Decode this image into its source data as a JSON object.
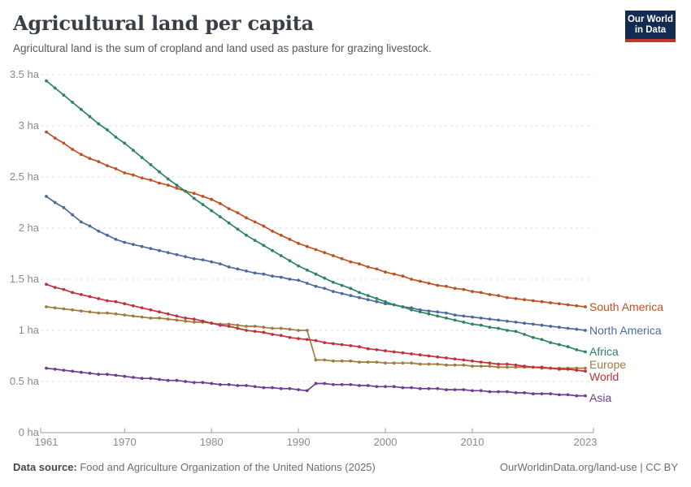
{
  "header": {
    "title": "Agricultural land per capita",
    "subtitle": "Agricultural land is the sum of cropland and land used as pasture for grazing livestock.",
    "logo": {
      "line1": "Our World",
      "line2": "in Data",
      "bg_color": "#122B51",
      "accent_color": "#C5342F"
    }
  },
  "footer": {
    "source_label": "Data source:",
    "source_text": " Food and Agriculture Organization of the United Nations (2025)",
    "credit": "OurWorldinData.org/land-use | CC BY"
  },
  "chart_data": {
    "type": "line",
    "unit": "ha",
    "x_range": [
      1961,
      2023
    ],
    "ylim": [
      0,
      3.5
    ],
    "grid": "horizontal-dashed",
    "legend_position": "right-of-line-ends",
    "yticks": [
      0,
      0.5,
      1,
      1.5,
      2,
      2.5,
      3,
      3.5
    ],
    "ytick_labels": [
      "0 ha",
      "0.5 ha",
      "1 ha",
      "1.5 ha",
      "2 ha",
      "2.5 ha",
      "3 ha",
      "3.5 ha"
    ],
    "xticks": [
      1961,
      1970,
      1980,
      1990,
      2000,
      2010,
      2023
    ],
    "years": [
      1961,
      1962,
      1963,
      1964,
      1965,
      1966,
      1967,
      1968,
      1969,
      1970,
      1971,
      1972,
      1973,
      1974,
      1975,
      1976,
      1977,
      1978,
      1979,
      1980,
      1981,
      1982,
      1983,
      1984,
      1985,
      1986,
      1987,
      1988,
      1989,
      1990,
      1991,
      1992,
      1993,
      1994,
      1995,
      1996,
      1997,
      1998,
      1999,
      2000,
      2001,
      2002,
      2003,
      2004,
      2005,
      2006,
      2007,
      2008,
      2009,
      2010,
      2011,
      2012,
      2013,
      2014,
      2015,
      2016,
      2017,
      2018,
      2019,
      2020,
      2021,
      2022,
      2023
    ],
    "series": [
      {
        "name": "South America",
        "color": "#BE5123",
        "values": [
          2.94,
          2.88,
          2.83,
          2.77,
          2.72,
          2.68,
          2.65,
          2.61,
          2.58,
          2.54,
          2.52,
          2.49,
          2.47,
          2.44,
          2.42,
          2.39,
          2.36,
          2.34,
          2.31,
          2.28,
          2.24,
          2.19,
          2.15,
          2.1,
          2.06,
          2.02,
          1.97,
          1.93,
          1.89,
          1.85,
          1.82,
          1.79,
          1.76,
          1.73,
          1.7,
          1.67,
          1.65,
          1.62,
          1.6,
          1.57,
          1.55,
          1.53,
          1.5,
          1.48,
          1.46,
          1.44,
          1.43,
          1.41,
          1.4,
          1.38,
          1.37,
          1.35,
          1.34,
          1.32,
          1.31,
          1.3,
          1.29,
          1.28,
          1.27,
          1.26,
          1.25,
          1.24,
          1.23
        ]
      },
      {
        "name": "North America",
        "color": "#4C6A9C",
        "values": [
          2.31,
          2.25,
          2.2,
          2.13,
          2.06,
          2.02,
          1.97,
          1.93,
          1.89,
          1.86,
          1.84,
          1.82,
          1.8,
          1.78,
          1.76,
          1.74,
          1.72,
          1.7,
          1.69,
          1.67,
          1.65,
          1.62,
          1.6,
          1.58,
          1.56,
          1.55,
          1.53,
          1.52,
          1.5,
          1.49,
          1.46,
          1.43,
          1.41,
          1.38,
          1.36,
          1.34,
          1.32,
          1.3,
          1.28,
          1.26,
          1.25,
          1.23,
          1.22,
          1.2,
          1.19,
          1.18,
          1.17,
          1.15,
          1.14,
          1.13,
          1.12,
          1.11,
          1.1,
          1.09,
          1.08,
          1.07,
          1.06,
          1.05,
          1.04,
          1.03,
          1.02,
          1.01,
          1.0
        ]
      },
      {
        "name": "Africa",
        "color": "#2C8465",
        "values": [
          3.44,
          3.37,
          3.3,
          3.23,
          3.16,
          3.09,
          3.02,
          2.96,
          2.89,
          2.83,
          2.76,
          2.69,
          2.62,
          2.55,
          2.48,
          2.42,
          2.36,
          2.29,
          2.23,
          2.17,
          2.11,
          2.05,
          1.99,
          1.93,
          1.88,
          1.83,
          1.78,
          1.73,
          1.68,
          1.63,
          1.59,
          1.55,
          1.51,
          1.47,
          1.44,
          1.41,
          1.37,
          1.34,
          1.31,
          1.28,
          1.25,
          1.23,
          1.2,
          1.18,
          1.16,
          1.14,
          1.12,
          1.1,
          1.08,
          1.06,
          1.05,
          1.03,
          1.02,
          1.0,
          0.99,
          0.96,
          0.93,
          0.91,
          0.88,
          0.86,
          0.84,
          0.81,
          0.79
        ]
      },
      {
        "name": "Europe",
        "color": "#A07C3B",
        "values": [
          1.23,
          1.22,
          1.21,
          1.2,
          1.19,
          1.18,
          1.17,
          1.17,
          1.16,
          1.15,
          1.14,
          1.13,
          1.12,
          1.12,
          1.11,
          1.1,
          1.09,
          1.08,
          1.08,
          1.07,
          1.06,
          1.06,
          1.05,
          1.04,
          1.04,
          1.03,
          1.02,
          1.02,
          1.01,
          1.0,
          1.0,
          0.71,
          0.71,
          0.7,
          0.7,
          0.7,
          0.69,
          0.69,
          0.69,
          0.68,
          0.68,
          0.68,
          0.68,
          0.67,
          0.67,
          0.67,
          0.66,
          0.66,
          0.66,
          0.65,
          0.65,
          0.65,
          0.64,
          0.64,
          0.64,
          0.64,
          0.64,
          0.63,
          0.63,
          0.63,
          0.63,
          0.63,
          0.63
        ]
      },
      {
        "name": "World",
        "color": "#C4303B",
        "values": [
          1.45,
          1.42,
          1.4,
          1.37,
          1.35,
          1.33,
          1.31,
          1.29,
          1.28,
          1.26,
          1.24,
          1.22,
          1.2,
          1.18,
          1.16,
          1.14,
          1.12,
          1.11,
          1.09,
          1.07,
          1.05,
          1.04,
          1.02,
          1.0,
          0.99,
          0.98,
          0.96,
          0.95,
          0.93,
          0.92,
          0.91,
          0.9,
          0.88,
          0.87,
          0.86,
          0.85,
          0.84,
          0.82,
          0.81,
          0.8,
          0.79,
          0.78,
          0.77,
          0.76,
          0.75,
          0.74,
          0.73,
          0.72,
          0.71,
          0.7,
          0.69,
          0.68,
          0.67,
          0.67,
          0.66,
          0.65,
          0.64,
          0.64,
          0.63,
          0.62,
          0.62,
          0.61,
          0.6
        ]
      },
      {
        "name": "Asia",
        "color": "#6D3E91",
        "values": [
          0.63,
          0.62,
          0.61,
          0.6,
          0.59,
          0.58,
          0.57,
          0.57,
          0.56,
          0.55,
          0.54,
          0.53,
          0.53,
          0.52,
          0.51,
          0.51,
          0.5,
          0.49,
          0.49,
          0.48,
          0.47,
          0.47,
          0.46,
          0.46,
          0.45,
          0.44,
          0.44,
          0.43,
          0.43,
          0.42,
          0.41,
          0.48,
          0.48,
          0.47,
          0.47,
          0.47,
          0.46,
          0.46,
          0.45,
          0.45,
          0.45,
          0.44,
          0.44,
          0.43,
          0.43,
          0.43,
          0.42,
          0.42,
          0.42,
          0.41,
          0.41,
          0.4,
          0.4,
          0.4,
          0.39,
          0.39,
          0.38,
          0.38,
          0.38,
          0.37,
          0.37,
          0.36,
          0.36
        ]
      }
    ]
  }
}
